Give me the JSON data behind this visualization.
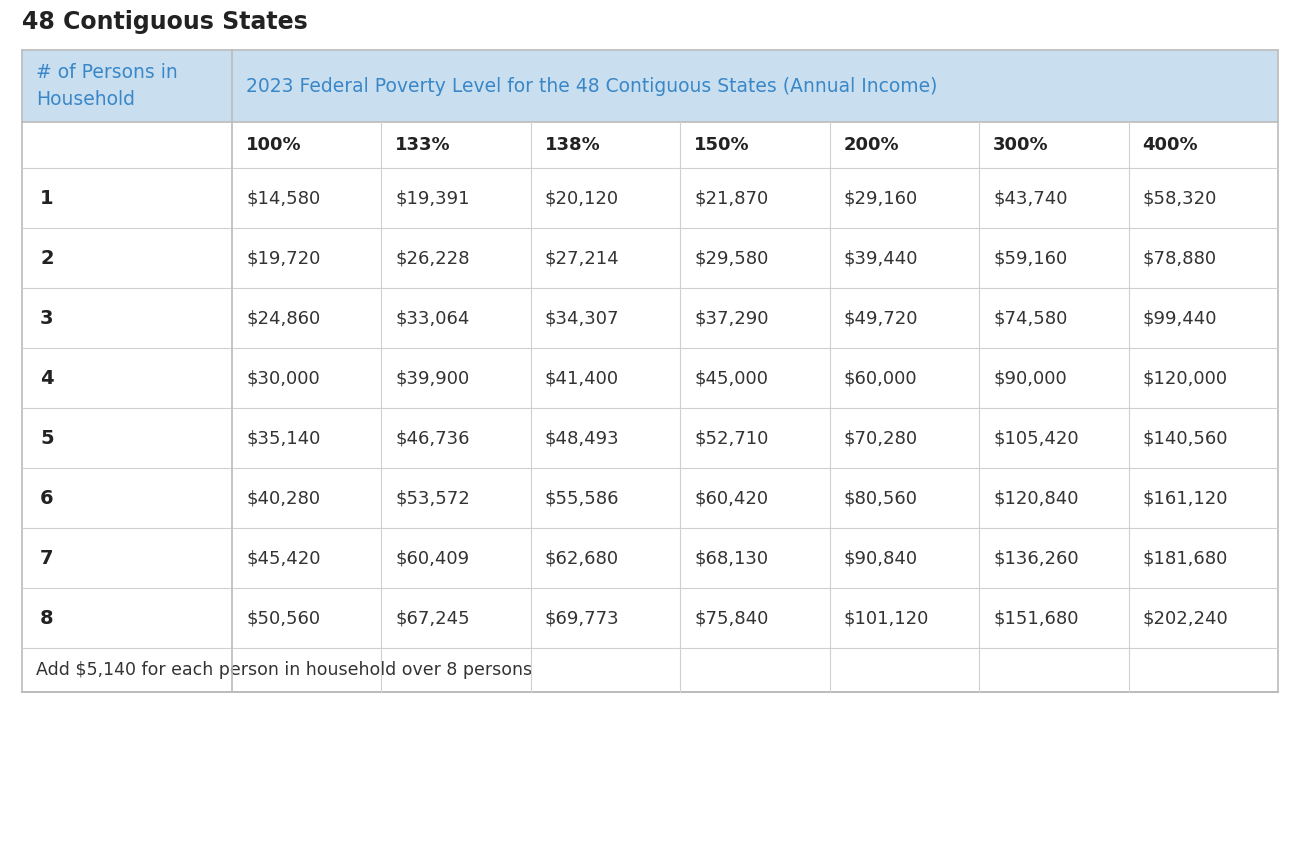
{
  "title": "48 Contiguous States",
  "header_col1": "# of Persons in\nHousehold",
  "header_col2": "2023 Federal Poverty Level for the 48 Contiguous States (Annual Income)",
  "sub_headers": [
    "100%",
    "133%",
    "138%",
    "150%",
    "200%",
    "300%",
    "400%"
  ],
  "persons": [
    "1",
    "2",
    "3",
    "4",
    "5",
    "6",
    "7",
    "8"
  ],
  "table_data": [
    [
      "$14,580",
      "$19,391",
      "$20,120",
      "$21,870",
      "$29,160",
      "$43,740",
      "$58,320"
    ],
    [
      "$19,720",
      "$26,228",
      "$27,214",
      "$29,580",
      "$39,440",
      "$59,160",
      "$78,880"
    ],
    [
      "$24,860",
      "$33,064",
      "$34,307",
      "$37,290",
      "$49,720",
      "$74,580",
      "$99,440"
    ],
    [
      "$30,000",
      "$39,900",
      "$41,400",
      "$45,000",
      "$60,000",
      "$90,000",
      "$120,000"
    ],
    [
      "$35,140",
      "$46,736",
      "$48,493",
      "$52,710",
      "$70,280",
      "$105,420",
      "$140,560"
    ],
    [
      "$40,280",
      "$53,572",
      "$55,586",
      "$60,420",
      "$80,560",
      "$120,840",
      "$161,120"
    ],
    [
      "$45,420",
      "$60,409",
      "$62,680",
      "$68,130",
      "$90,840",
      "$136,260",
      "$181,680"
    ],
    [
      "$50,560",
      "$67,245",
      "$69,773",
      "$75,840",
      "$101,120",
      "$151,680",
      "$202,240"
    ]
  ],
  "footer": "Add $5,140 for each person in household over 8 persons",
  "bg_color": "#ffffff",
  "header_bg_color": "#c9dff0",
  "header_text_color": "#3a87c8",
  "body_text_color": "#333333",
  "bold_text_color": "#222222",
  "row_line_color": "#d0d0d0",
  "outer_border_color": "#bbbbbb",
  "title_fontsize": 17,
  "header_fontsize": 13.5,
  "sub_header_fontsize": 13,
  "data_fontsize": 13,
  "footer_fontsize": 12.5
}
